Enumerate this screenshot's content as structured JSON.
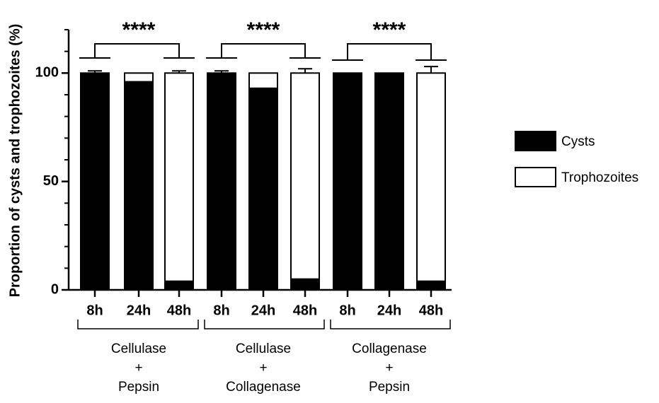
{
  "chart_data": {
    "type": "stacked_bar",
    "ylabel": "Proportion of cysts and trophozoites (%)",
    "categories": [
      "8h",
      "24h",
      "48h",
      "8h",
      "24h",
      "48h",
      "8h",
      "24h",
      "48h"
    ],
    "series": [
      {
        "name": "Cysts",
        "color": "#000000",
        "values": [
          100,
          96,
          4,
          100,
          93,
          5,
          100,
          100,
          4
        ]
      },
      {
        "name": "Trophozoites",
        "color": "#ffffff",
        "values": [
          0,
          4,
          96,
          0,
          7,
          95,
          0,
          0,
          96
        ]
      }
    ],
    "errors": [
      1,
      0,
      1,
      1,
      0,
      2,
      0,
      0,
      3
    ],
    "ylim": [
      0,
      120
    ],
    "yticks": [
      0,
      50,
      100
    ],
    "yminorticks": [
      10,
      20,
      30,
      40,
      60,
      70,
      80,
      90,
      110,
      120
    ],
    "groups": [
      {
        "lines": [
          "Cellulase",
          "+",
          "Pepsin"
        ],
        "annotation": "****"
      },
      {
        "lines": [
          "Cellulase",
          "+",
          "Collagenase"
        ],
        "annotation": "****"
      },
      {
        "lines": [
          "Collagenase",
          "+",
          "Pepsin"
        ],
        "annotation": "****"
      }
    ],
    "legend": "right"
  }
}
